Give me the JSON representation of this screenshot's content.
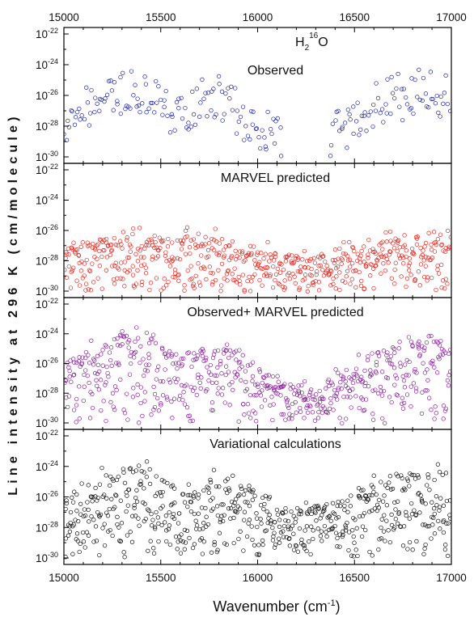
{
  "chart_data": {
    "type": "scatter",
    "title": "",
    "xlabel": "Wavenumber (cm",
    "xlabel_sup": "-1",
    "xlabel_end": ")",
    "ylabel": "Line intensity at 296 K (cm/molecule)",
    "xlim": [
      15000,
      17000
    ],
    "x_ticks": [
      "15000",
      "15500",
      "16000",
      "16500",
      "17000"
    ],
    "y_scale": "log",
    "ylim": [
      1e-30,
      1e-22
    ],
    "y_tick_base": "10",
    "y_tick_exponents": [
      "-22",
      "-24",
      "-26",
      "-28",
      "-30"
    ],
    "molecule_label": {
      "base": "H",
      "sub": "2",
      "sup": "16",
      "end": "O"
    },
    "marker": "open circle",
    "panels": [
      {
        "name": "Observed",
        "label": "Observed",
        "color": "#1e22a8",
        "gaps": [
          [
            16130,
            16370
          ]
        ],
        "envelope": [
          [
            15000,
            -26.2
          ],
          [
            15150,
            -25.2
          ],
          [
            15300,
            -24.1
          ],
          [
            15450,
            -24.3
          ],
          [
            15550,
            -25.4
          ],
          [
            15650,
            -25.0
          ],
          [
            15800,
            -24.5
          ],
          [
            15900,
            -25.4
          ],
          [
            16000,
            -26.4
          ],
          [
            16130,
            -27.0
          ],
          [
            16370,
            -27.2
          ],
          [
            16550,
            -25.6
          ],
          [
            16700,
            -24.6
          ],
          [
            16850,
            -24.1
          ],
          [
            17000,
            -24.6
          ]
        ],
        "density": 0.5,
        "fill_to_min": false
      },
      {
        "name": "MARVEL predicted",
        "label": "MARVEL predicted",
        "color": "#e8231c",
        "gaps": [],
        "envelope": [
          [
            15000,
            -26.9
          ],
          [
            15300,
            -26.4
          ],
          [
            15400,
            -26.1
          ],
          [
            15550,
            -26.5
          ],
          [
            15700,
            -26.2
          ],
          [
            15880,
            -26.6
          ],
          [
            16050,
            -27.3
          ],
          [
            16250,
            -27.8
          ],
          [
            16400,
            -27.2
          ],
          [
            16600,
            -26.8
          ],
          [
            16850,
            -26.1
          ],
          [
            17000,
            -26.0
          ]
        ],
        "density": 1.25,
        "fill_to_min": true
      },
      {
        "name": "Observed+ MARVEL predicted",
        "label": "Observed+ MARVEL predicted",
        "color": "#8a1c9c",
        "gaps": [],
        "envelope": [
          [
            15000,
            -26.0
          ],
          [
            15150,
            -25.0
          ],
          [
            15300,
            -24.0
          ],
          [
            15450,
            -24.3
          ],
          [
            15550,
            -25.4
          ],
          [
            15700,
            -25.0
          ],
          [
            15850,
            -24.6
          ],
          [
            16000,
            -26.3
          ],
          [
            16150,
            -27.3
          ],
          [
            16300,
            -27.6
          ],
          [
            16500,
            -25.8
          ],
          [
            16700,
            -24.6
          ],
          [
            16850,
            -24.0
          ],
          [
            17000,
            -24.6
          ]
        ],
        "density": 1.25,
        "fill_to_min": true
      },
      {
        "name": "Variational calculations",
        "label": "Variational calculations",
        "color": "#0d0d0d",
        "gaps": [],
        "envelope": [
          [
            15000,
            -26.0
          ],
          [
            15150,
            -24.9
          ],
          [
            15300,
            -24.0
          ],
          [
            15450,
            -24.2
          ],
          [
            15550,
            -25.1
          ],
          [
            15700,
            -25.0
          ],
          [
            15850,
            -24.6
          ],
          [
            16000,
            -25.8
          ],
          [
            16150,
            -26.6
          ],
          [
            16300,
            -26.6
          ],
          [
            16450,
            -26.0
          ],
          [
            16600,
            -25.0
          ],
          [
            16750,
            -24.3
          ],
          [
            16900,
            -24.0
          ],
          [
            17000,
            -24.5
          ]
        ],
        "density": 1.3,
        "fill_to_min": true
      }
    ]
  }
}
